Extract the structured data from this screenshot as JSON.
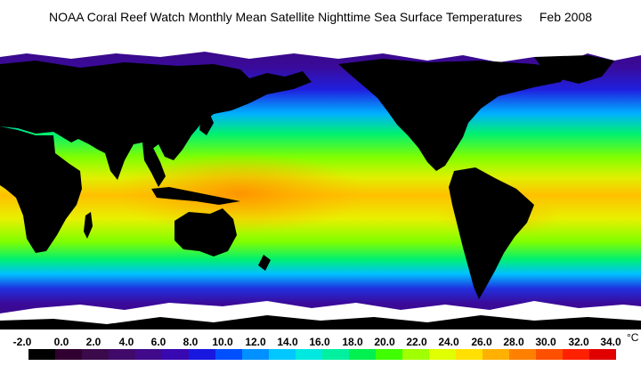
{
  "title": "NOAA Coral Reef Watch Monthly Mean Satellite Nighttime Sea Surface Temperatures     Feb 2008",
  "legend": {
    "unit": "°C",
    "labels": [
      "-2.0",
      "0.0",
      "2.0",
      "4.0",
      "6.0",
      "8.0",
      "10.0",
      "12.0",
      "14.0",
      "16.0",
      "18.0",
      "20.0",
      "22.0",
      "24.0",
      "26.0",
      "28.0",
      "30.0",
      "32.0",
      "34.0"
    ],
    "colors": [
      "#000000",
      "#300030",
      "#3a0a4a",
      "#400a6a",
      "#400a8a",
      "#3808b0",
      "#1818e0",
      "#0050ff",
      "#0090ff",
      "#00c8ff",
      "#00e8e0",
      "#00f0a0",
      "#00f050",
      "#40ff00",
      "#a0ff00",
      "#e0ff00",
      "#ffe000",
      "#ffb000",
      "#ff8000",
      "#ff5000",
      "#ff2000",
      "#e00000"
    ]
  },
  "map_colors": {
    "land": "#000000",
    "ice": "#ffffff",
    "polar_ocean": "#3a0a7a",
    "cold_ocean": "#2020e0",
    "cool_ocean": "#00b0ff",
    "temperate_ocean": "#00f070",
    "warm_ocean": "#c0ff00",
    "hot_ocean": "#ffb000"
  }
}
